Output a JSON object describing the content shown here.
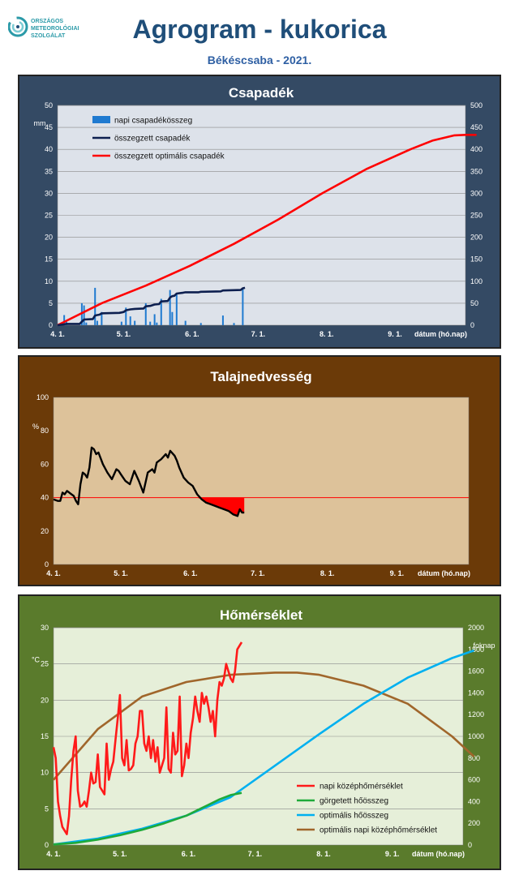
{
  "header": {
    "logo_text": "ORSZÁGOS\nMETEOROLÓGIAI\nSZOLGÁLAT",
    "title": "Agrogram - kukorica",
    "subtitle": "Békéscsaba - 2021."
  },
  "chart_data": [
    {
      "type": "bar",
      "title": "Csapadék",
      "xlabel": "dátum (hó.nap)",
      "ylabel": "mm",
      "x_ticks": [
        "4. 1.",
        "5. 1.",
        "6. 1.",
        "7. 1.",
        "8. 1.",
        "9. 1."
      ],
      "ylim": [
        0,
        50
      ],
      "y_ticks": [
        0,
        5,
        10,
        15,
        20,
        25,
        30,
        35,
        40,
        45,
        50
      ],
      "y2lim": [
        0,
        500
      ],
      "y2_ticks": [
        0,
        50,
        100,
        150,
        200,
        250,
        300,
        350,
        400,
        450,
        500
      ],
      "grid": true,
      "legend_position": "top-left",
      "series": [
        {
          "name": "napi csapadékösszeg",
          "kind": "bar",
          "axis": "left",
          "color": "#1f7ad0",
          "x_day": [
            3,
            4,
            11,
            12,
            13,
            17,
            18,
            20,
            29,
            31,
            33,
            35,
            40,
            42,
            44,
            45,
            47,
            51,
            52,
            54,
            58,
            65,
            75,
            80,
            84
          ],
          "values": [
            2.3,
            0.8,
            5.0,
            4.5,
            0.6,
            8.5,
            1.0,
            3.0,
            0.8,
            4.0,
            2.0,
            1.0,
            5.0,
            0.8,
            2.5,
            0.6,
            6.0,
            8.0,
            3.0,
            7.0,
            1.0,
            0.5,
            2.2,
            0.5,
            8.3
          ]
        },
        {
          "name": "összegzett csapadék",
          "kind": "line",
          "axis": "right",
          "color": "#0d1f4f",
          "x_day": [
            0,
            3,
            4,
            10,
            11,
            12,
            16,
            17,
            18,
            19,
            20,
            28,
            29,
            30,
            31,
            33,
            35,
            39,
            40,
            42,
            44,
            46,
            47,
            50,
            51,
            52,
            53,
            54,
            57,
            58,
            64,
            65,
            74,
            75,
            83,
            84,
            85
          ],
          "values": [
            0,
            2,
            3,
            3,
            8,
            13,
            14,
            22,
            23,
            24,
            27,
            28,
            29,
            30,
            34,
            36,
            37,
            38,
            43,
            44,
            47,
            48,
            54,
            55,
            63,
            66,
            67,
            72,
            74,
            75,
            75,
            76,
            77,
            79,
            80,
            84,
            85
          ]
        },
        {
          "name": "összegzett optimális csapadék",
          "kind": "line",
          "axis": "right",
          "color": "#ff0000",
          "x_day": [
            0,
            20,
            40,
            60,
            80,
            100,
            120,
            140,
            160,
            170,
            180,
            185,
            190
          ],
          "values": [
            0,
            50,
            90,
            135,
            185,
            240,
            300,
            355,
            400,
            420,
            432,
            433,
            433
          ]
        }
      ]
    },
    {
      "type": "line",
      "title": "Talajnedvesség",
      "xlabel": "dátum (hó.nap)",
      "ylabel": "%",
      "x_ticks": [
        "4. 1.",
        "5. 1.",
        "6. 1.",
        "7. 1.",
        "8. 1.",
        "9. 1."
      ],
      "ylim": [
        0,
        100
      ],
      "y_ticks": [
        0,
        20,
        40,
        60,
        80,
        100
      ],
      "grid": false,
      "threshold": 40,
      "threshold_color": "#ff0000",
      "series": [
        {
          "name": "talajnedvesség",
          "color": "#000000",
          "x_day": [
            0,
            2,
            3,
            4,
            5,
            6,
            7,
            8,
            9,
            10,
            11,
            12,
            13,
            14,
            15,
            16,
            17,
            18,
            19,
            20,
            22,
            24,
            26,
            28,
            29,
            30,
            31,
            32,
            34,
            36,
            38,
            40,
            42,
            44,
            45,
            46,
            48,
            50,
            51,
            52,
            54,
            55,
            56,
            58,
            60,
            62,
            64,
            66,
            68,
            70,
            72,
            74,
            76,
            78,
            80,
            82,
            83,
            84,
            85
          ],
          "values": [
            39,
            38,
            38,
            43,
            42,
            44,
            43,
            42,
            41,
            38,
            36,
            48,
            55,
            54,
            52,
            58,
            70,
            69,
            66,
            67,
            60,
            55,
            51,
            57,
            56,
            54,
            52,
            50,
            48,
            56,
            50,
            43,
            55,
            57,
            55,
            61,
            63,
            66,
            64,
            68,
            65,
            62,
            58,
            52,
            49,
            47,
            42,
            39,
            37,
            36,
            35,
            34,
            33,
            32,
            30,
            29,
            33,
            31,
            31
          ]
        }
      ]
    },
    {
      "type": "line",
      "title": "Hőmérséklet",
      "xlabel": "dátum (hó.nap)",
      "ylabel": "°C",
      "y2label": "foknap",
      "x_ticks": [
        "4. 1.",
        "5. 1.",
        "6. 1.",
        "7. 1.",
        "8. 1.",
        "9. 1."
      ],
      "ylim": [
        0,
        30
      ],
      "y_ticks": [
        0,
        5,
        10,
        15,
        20,
        25,
        30
      ],
      "y2lim": [
        0,
        2000
      ],
      "y2_ticks": [
        0,
        200,
        400,
        600,
        800,
        1000,
        1200,
        1400,
        1600,
        1800,
        2000
      ],
      "grid": true,
      "legend_position": "bottom-right",
      "series": [
        {
          "name": "napi középhőmérséklet",
          "axis": "left",
          "color": "#ff1a1a",
          "x_day": [
            0,
            1,
            2,
            3,
            4,
            5,
            6,
            7,
            8,
            9,
            10,
            11,
            12,
            13,
            14,
            15,
            16,
            17,
            18,
            19,
            20,
            21,
            22,
            23,
            24,
            25,
            26,
            27,
            28,
            29,
            30,
            31,
            32,
            33,
            34,
            35,
            36,
            37,
            38,
            39,
            40,
            41,
            42,
            43,
            44,
            45,
            46,
            47,
            48,
            49,
            50,
            51,
            52,
            53,
            54,
            55,
            56,
            57,
            58,
            59,
            60,
            61,
            62,
            63,
            64,
            65,
            66,
            67,
            68,
            69,
            70,
            71,
            72,
            73,
            74,
            75,
            76,
            77,
            78,
            79,
            80,
            81,
            82,
            83,
            84,
            85
          ],
          "values": [
            13.5,
            12,
            6,
            4,
            2.5,
            2,
            1.5,
            4,
            9,
            13,
            15,
            7.5,
            5.3,
            5.5,
            6,
            5.3,
            7.5,
            10,
            8.5,
            8.7,
            12.5,
            8,
            7.5,
            7,
            14,
            9,
            10.5,
            11.5,
            14.5,
            17.5,
            20.7,
            12,
            11,
            14.5,
            10.3,
            10.5,
            11,
            14,
            15,
            18.5,
            18.5,
            14,
            13,
            15,
            12,
            14.5,
            11.5,
            13.5,
            10,
            11,
            12,
            19,
            10.5,
            10,
            15.5,
            12.5,
            13,
            20.5,
            9.5,
            11,
            14,
            12,
            15.5,
            17.5,
            20.5,
            18.5,
            17,
            21,
            19.5,
            20.5,
            19,
            17,
            18.5,
            15,
            20,
            22.5,
            22,
            23,
            25,
            24,
            23,
            22.5,
            24,
            27,
            27.5,
            28
          ]
        },
        {
          "name": "görgetett hőösszeg",
          "axis": "right",
          "color": "#1faa3a",
          "x_day": [
            0,
            10,
            20,
            30,
            40,
            50,
            60,
            65,
            70,
            75,
            80,
            85
          ],
          "values": [
            5,
            20,
            50,
            90,
            140,
            200,
            270,
            320,
            370,
            420,
            460,
            480
          ]
        },
        {
          "name": "optimális hőösszeg",
          "axis": "right",
          "color": "#00b0f0",
          "x_day": [
            0,
            20,
            40,
            60,
            80,
            100,
            120,
            140,
            160,
            180,
            190
          ],
          "values": [
            5,
            60,
            150,
            270,
            440,
            730,
            1020,
            1300,
            1540,
            1720,
            1790
          ]
        },
        {
          "name": "optimális napi középhőmérséklet",
          "axis": "left",
          "color": "#a0662b",
          "x_day": [
            0,
            20,
            40,
            60,
            80,
            100,
            110,
            120,
            140,
            160,
            180,
            190
          ],
          "values": [
            9,
            16,
            20.5,
            22.5,
            23.5,
            23.8,
            23.8,
            23.5,
            22,
            19.5,
            15,
            12.2
          ]
        }
      ]
    }
  ]
}
